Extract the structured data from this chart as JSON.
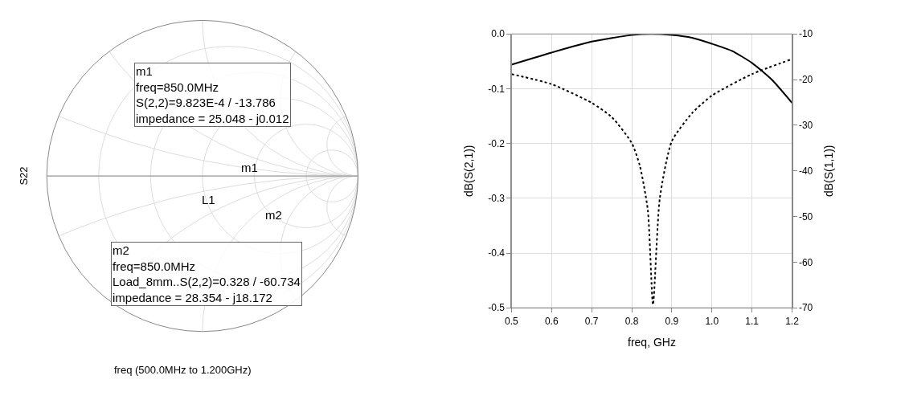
{
  "chart_data": [
    {
      "type": "other",
      "title": "S22",
      "xlabel": "freq (500.0MHz to 1.200GHz)",
      "annotations": [
        "m1\nfreq=850.0MHz\nS(2,2)=9.823E-4 / -13.786\nimpedance = 25.048 - j0.012",
        "m2\nfreq=850.0MHz\nLoad_8mm..S(2,2)=0.328 / -60.734\nimpedance = 28.354 - j18.172",
        "m1",
        "m2",
        "L1"
      ]
    },
    {
      "type": "line",
      "xlabel": "freq, GHz",
      "ylabel": "dB(S(2,1))",
      "y2label": "dB(S(1,1))",
      "xlim": [
        0.5,
        1.2
      ],
      "xticks": [
        0.5,
        0.6,
        0.7,
        0.8,
        0.9,
        {
          "value": 1.0,
          "label": "1.0"
        },
        1.1,
        1.2
      ],
      "ylim": [
        -0.5,
        0
      ],
      "yticks": [
        -0.5,
        -0.4,
        -0.3,
        -0.2,
        -0.1,
        {
          "value": 0,
          "label": "0.0"
        }
      ],
      "y2lim": [
        -70,
        -10
      ],
      "y2ticks": [
        -70,
        -60,
        -50,
        -40,
        -30,
        -20,
        -10
      ],
      "grid": true,
      "series": [
        {
          "color": "#000000",
          "line_style": "solid",
          "x": [
            0.5,
            0.6,
            0.7,
            0.8,
            0.85,
            0.9,
            0.95,
            1.0,
            1.05,
            1.1,
            1.15,
            1.2
          ],
          "values": [
            -0.056,
            -0.034,
            -0.014,
            -0.002,
            0,
            -0.002,
            -0.007,
            -0.018,
            -0.031,
            -0.053,
            -0.084,
            -0.126
          ]
        },
        {
          "color": "#000000",
          "line_style": "dotted",
          "axis": "y2",
          "x": [
            0.5,
            0.6,
            0.7,
            0.75,
            0.8,
            0.82,
            0.84,
            0.853,
            0.87,
            0.9,
            0.95,
            1.0,
            1.1,
            1.2
          ],
          "values": [
            -18.8,
            -21.0,
            -25.1,
            -28.2,
            -33.9,
            -38.8,
            -48.5,
            -69.3,
            -46,
            -33.5,
            -27.4,
            -23.5,
            -18.8,
            -15.5
          ]
        }
      ]
    }
  ]
}
